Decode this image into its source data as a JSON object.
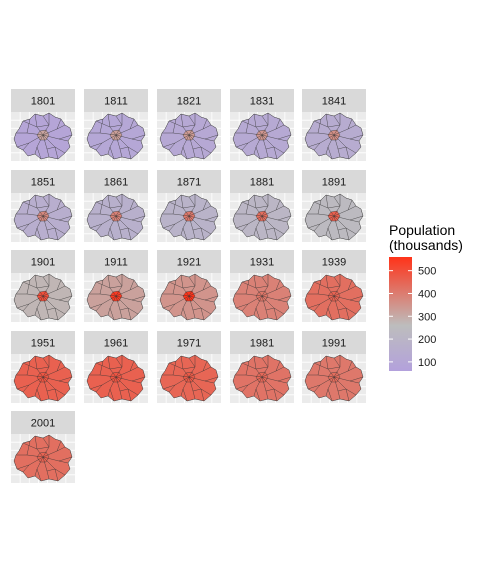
{
  "chart_data": {
    "type": "choropleth_small_multiples",
    "panels": [
      {
        "year": "1801",
        "level": 0.06
      },
      {
        "year": "1811",
        "level": 0.08
      },
      {
        "year": "1821",
        "level": 0.1
      },
      {
        "year": "1831",
        "level": 0.12
      },
      {
        "year": "1841",
        "level": 0.15
      },
      {
        "year": "1851",
        "level": 0.18
      },
      {
        "year": "1861",
        "level": 0.21
      },
      {
        "year": "1871",
        "level": 0.25
      },
      {
        "year": "1881",
        "level": 0.3
      },
      {
        "year": "1891",
        "level": 0.36
      },
      {
        "year": "1901",
        "level": 0.43
      },
      {
        "year": "1911",
        "level": 0.52
      },
      {
        "year": "1921",
        "level": 0.58
      },
      {
        "year": "1931",
        "level": 0.66
      },
      {
        "year": "1939",
        "level": 0.74
      },
      {
        "year": "1951",
        "level": 0.8
      },
      {
        "year": "1961",
        "level": 0.8
      },
      {
        "year": "1971",
        "level": 0.78
      },
      {
        "year": "1981",
        "level": 0.72
      },
      {
        "year": "1991",
        "level": 0.7
      },
      {
        "year": "2001",
        "level": 0.74
      }
    ],
    "legend": {
      "title_line1": "Population",
      "title_line2": "(thousands)",
      "ticks": [
        {
          "label": "100",
          "value": 100
        },
        {
          "label": "200",
          "value": 200
        },
        {
          "label": "300",
          "value": 300
        },
        {
          "label": "400",
          "value": 400
        },
        {
          "label": "500",
          "value": 500
        }
      ],
      "range": [
        60,
        560
      ],
      "colors": {
        "low": "#b3a1dc",
        "mid": "#bdbdbd",
        "high": "#ff3319"
      }
    },
    "panel_background": "#ebebeb",
    "strip_background": "#d9d9d9",
    "grid": true
  }
}
